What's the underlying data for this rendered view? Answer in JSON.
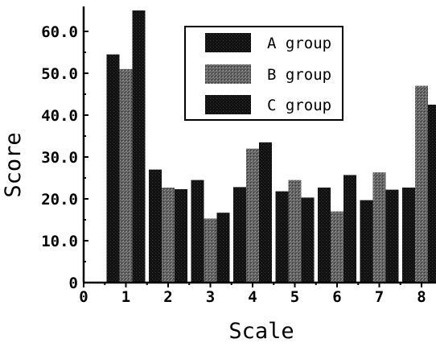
{
  "chart_data": {
    "type": "bar",
    "title": "",
    "xlabel": "Scale",
    "ylabel": "Score",
    "categories": [
      "1",
      "2",
      "3",
      "4",
      "5",
      "6",
      "7",
      "8"
    ],
    "x_ticks": [
      "0",
      "1",
      "2",
      "3",
      "4",
      "5",
      "6",
      "7",
      "8"
    ],
    "y_ticks": [
      "0",
      "10.0",
      "20.0",
      "30.0",
      "40.0",
      "50.0",
      "60.0"
    ],
    "ylim": [
      0,
      66
    ],
    "xlim": [
      0,
      8.35
    ],
    "grid": false,
    "legend_position": "top-center",
    "series": [
      {
        "name": "A group",
        "color": "#141414",
        "values": [
          54.5,
          27.0,
          24.5,
          22.8,
          21.8,
          22.7,
          19.7,
          22.7
        ]
      },
      {
        "name": "B group",
        "color": "#6a6a6a",
        "values": [
          51.0,
          22.7,
          15.3,
          32.0,
          24.5,
          17.0,
          26.3,
          47.0
        ]
      },
      {
        "name": "C group",
        "color": "#1e1e1e",
        "values": [
          65.0,
          22.3,
          16.7,
          33.5,
          20.3,
          25.7,
          22.2,
          42.5
        ]
      }
    ]
  }
}
